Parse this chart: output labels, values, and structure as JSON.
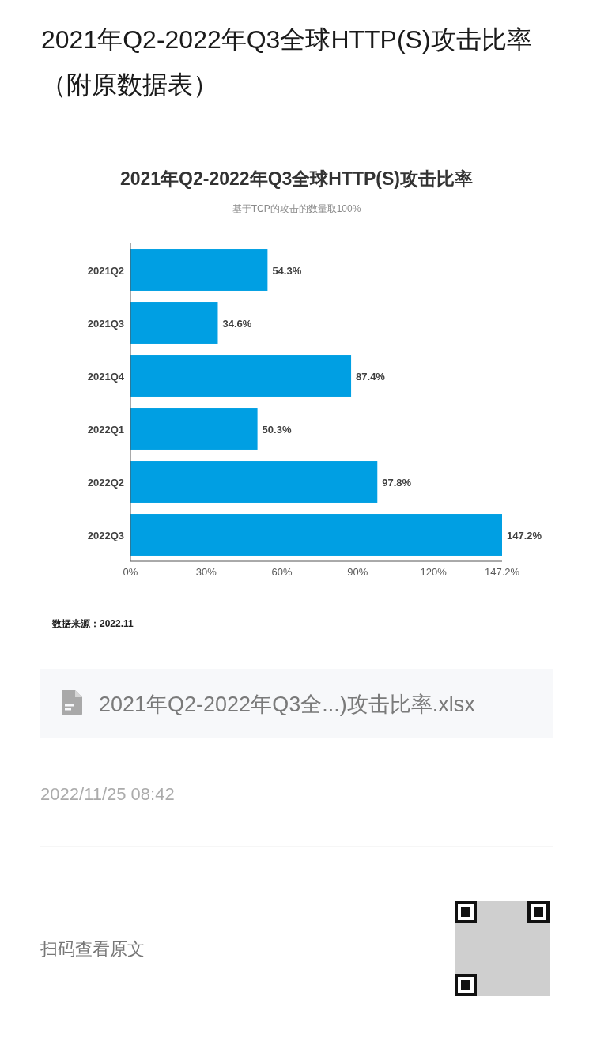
{
  "chart_data": {
    "type": "bar",
    "orientation": "horizontal",
    "title": "2021年Q2-2022年Q3全球HTTP(S)攻击比率",
    "subtitle": "基于TCP的攻击的数量取100%",
    "categories": [
      "2021Q2",
      "2021Q3",
      "2021Q4",
      "2022Q1",
      "2022Q2",
      "2022Q3"
    ],
    "values": [
      54.3,
      34.6,
      87.4,
      50.3,
      97.8,
      147.2
    ],
    "value_labels": [
      "54.3%",
      "34.6%",
      "87.4%",
      "50.3%",
      "97.8%",
      "147.2%"
    ],
    "color": "#009fe3",
    "xlim": [
      0,
      147.2
    ],
    "xticks": [
      {
        "value": 0,
        "label": "0%"
      },
      {
        "value": 30,
        "label": "30%"
      },
      {
        "value": 60,
        "label": "60%"
      },
      {
        "value": 90,
        "label": "90%"
      },
      {
        "value": 120,
        "label": "120%"
      },
      {
        "value": 147.2,
        "label": "147.2%"
      }
    ],
    "annotations": [
      "2021年Q2-2022年Q3全球HTTP(S)攻击比率（附原数据表）",
      "数据来源：2022.11",
      "2021年Q2-2022年Q3全...)攻击比率.xlsx",
      "2022/11/25 08:42",
      "扫码查看原文"
    ]
  }
}
